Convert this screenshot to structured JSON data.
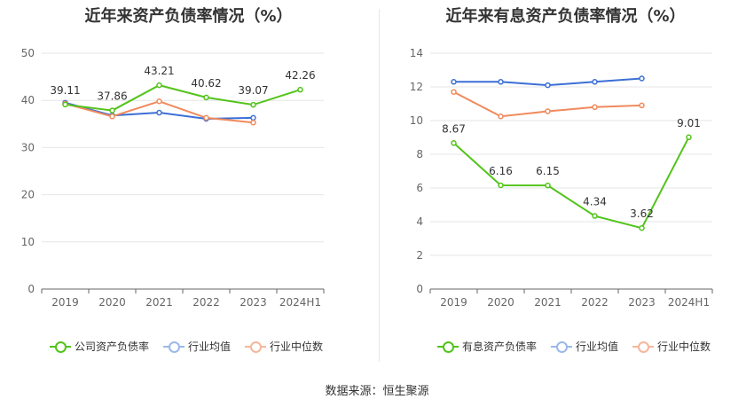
{
  "source_label": "数据来源：恒生聚源",
  "chart_data": [
    {
      "type": "line",
      "title": "近年来资产负债率情况（%）",
      "categories": [
        "2019",
        "2020",
        "2021",
        "2022",
        "2023",
        "2024H1"
      ],
      "ylim": [
        0,
        50
      ],
      "yticks": [
        0,
        10,
        20,
        30,
        40,
        50
      ],
      "grid": true,
      "legend_position": "bottom",
      "series": [
        {
          "name": "公司资产负债率",
          "color": "#52c41a",
          "values": [
            39.11,
            37.86,
            43.21,
            40.62,
            39.07,
            42.26
          ],
          "labels": [
            "39.11",
            "37.86",
            "43.21",
            "40.62",
            "39.07",
            "42.26"
          ]
        },
        {
          "name": "行业均值",
          "color": "#3b6fd6",
          "values": [
            39.5,
            36.8,
            37.4,
            36.1,
            36.3,
            null
          ]
        },
        {
          "name": "行业中位数",
          "color": "#f08a5d",
          "values": [
            39.3,
            36.6,
            39.8,
            36.3,
            35.3,
            null
          ]
        }
      ]
    },
    {
      "type": "line",
      "title": "近年来有息资产负债率情况（%）",
      "categories": [
        "2019",
        "2020",
        "2021",
        "2022",
        "2023",
        "2024H1"
      ],
      "ylim": [
        0,
        14
      ],
      "yticks": [
        0,
        2,
        4,
        6,
        8,
        10,
        12,
        14
      ],
      "grid": true,
      "legend_position": "bottom",
      "series": [
        {
          "name": "有息资产负债率",
          "color": "#52c41a",
          "values": [
            8.67,
            6.16,
            6.15,
            4.34,
            3.62,
            9.01
          ],
          "labels": [
            "8.67",
            "6.16",
            "6.15",
            "4.34",
            "3.62",
            "9.01"
          ]
        },
        {
          "name": "行业均值",
          "color": "#3b6fd6",
          "values": [
            12.3,
            12.3,
            12.1,
            12.3,
            12.5,
            null
          ]
        },
        {
          "name": "行业中位数",
          "color": "#f08a5d",
          "values": [
            11.7,
            10.25,
            10.55,
            10.8,
            10.9,
            null
          ]
        }
      ]
    }
  ]
}
